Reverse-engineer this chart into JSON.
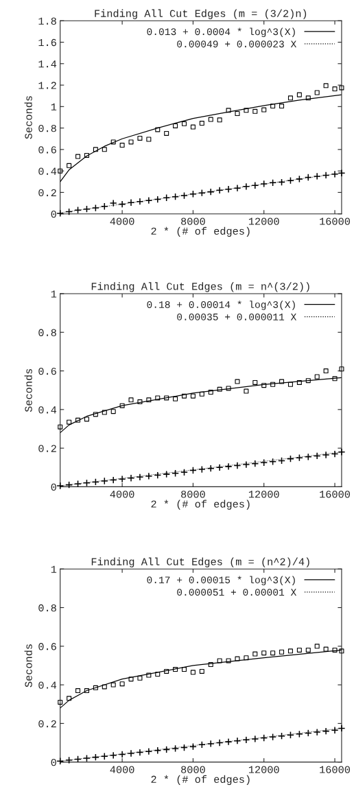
{
  "chart_data": [
    {
      "type": "scatter",
      "title": "Finding All Cut Edges (m = (3/2)n)",
      "xlabel": "2 * (# of edges)",
      "ylabel": "Seconds",
      "x": [
        500,
        1000,
        1500,
        2000,
        2500,
        3000,
        3500,
        4000,
        4500,
        5000,
        5500,
        6000,
        6500,
        7000,
        7500,
        8000,
        8500,
        9000,
        9500,
        10000,
        10500,
        11000,
        11500,
        12000,
        12500,
        13000,
        13500,
        14000,
        14500,
        15000,
        15500,
        16000,
        16384
      ],
      "xlim": [
        500,
        16384
      ],
      "xticks": [
        4000,
        8000,
        12000,
        16000
      ],
      "ylim": [
        0,
        1.8
      ],
      "yticks": [
        0,
        0.2,
        0.4,
        0.6,
        0.8,
        1,
        1.2,
        1.4,
        1.6,
        1.8
      ],
      "grid": false,
      "legend": "top right",
      "series": [
        {
          "marker": "square",
          "color": "#000000",
          "values": [
            0.4,
            0.45,
            0.535,
            0.545,
            0.6,
            0.6,
            0.67,
            0.64,
            0.67,
            0.705,
            0.695,
            0.785,
            0.75,
            0.82,
            0.84,
            0.81,
            0.845,
            0.88,
            0.875,
            0.965,
            0.935,
            0.965,
            0.955,
            0.97,
            1.005,
            1.005,
            1.08,
            1.11,
            1.08,
            1.13,
            1.195,
            1.165,
            1.175
          ]
        },
        {
          "type": "line",
          "name": "0.013 + 0.0004 * log^3(X)",
          "line_style": "solid",
          "color": "#000000",
          "x": [
            500,
            1000,
            2000,
            3000,
            4000,
            6000,
            8000,
            10000,
            12000,
            14000,
            16384
          ],
          "values": [
            0.3,
            0.41,
            0.54,
            0.63,
            0.7,
            0.8,
            0.89,
            0.95,
            1.01,
            1.06,
            1.11
          ]
        },
        {
          "marker": "cross",
          "color": "#000000",
          "values": [
            0.005,
            0.02,
            0.035,
            0.045,
            0.055,
            0.07,
            0.1,
            0.09,
            0.105,
            0.115,
            0.125,
            0.135,
            0.15,
            0.16,
            0.17,
            0.185,
            0.195,
            0.205,
            0.22,
            0.23,
            0.24,
            0.255,
            0.265,
            0.28,
            0.29,
            0.295,
            0.31,
            0.325,
            0.34,
            0.35,
            0.36,
            0.37,
            0.38
          ]
        },
        {
          "type": "line",
          "name": "0.00049 + 0.000023 X",
          "line_style": "dotted",
          "color": "#000000",
          "x": [
            500,
            16384
          ],
          "values": [
            0.01,
            0.38
          ]
        }
      ]
    },
    {
      "type": "scatter",
      "title": "Finding All Cut Edges (m = n^(3/2))",
      "xlabel": "2 * (# of edges)",
      "ylabel": "Seconds",
      "x": [
        500,
        1000,
        1500,
        2000,
        2500,
        3000,
        3500,
        4000,
        4500,
        5000,
        5500,
        6000,
        6500,
        7000,
        7500,
        8000,
        8500,
        9000,
        9500,
        10000,
        10500,
        11000,
        11500,
        12000,
        12500,
        13000,
        13500,
        14000,
        14500,
        15000,
        15500,
        16000,
        16384
      ],
      "xlim": [
        500,
        16384
      ],
      "xticks": [
        4000,
        8000,
        12000,
        16000
      ],
      "ylim": [
        0,
        1
      ],
      "yticks": [
        0,
        0.2,
        0.4,
        0.6,
        0.8,
        1
      ],
      "grid": false,
      "legend": "top right",
      "series": [
        {
          "marker": "square",
          "color": "#000000",
          "values": [
            0.31,
            0.335,
            0.345,
            0.35,
            0.375,
            0.385,
            0.39,
            0.42,
            0.45,
            0.44,
            0.45,
            0.46,
            0.46,
            0.455,
            0.47,
            0.47,
            0.48,
            0.49,
            0.505,
            0.51,
            0.545,
            0.495,
            0.54,
            0.525,
            0.53,
            0.545,
            0.53,
            0.54,
            0.55,
            0.57,
            0.6,
            0.56,
            0.61
          ]
        },
        {
          "type": "line",
          "name": "0.18 + 0.00014 * log^3(X)",
          "line_style": "solid",
          "color": "#000000",
          "x": [
            500,
            1000,
            2000,
            4000,
            8000,
            12000,
            16384
          ],
          "values": [
            0.28,
            0.32,
            0.365,
            0.42,
            0.485,
            0.53,
            0.565
          ]
        },
        {
          "marker": "cross",
          "color": "#000000",
          "values": [
            0.005,
            0.01,
            0.015,
            0.02,
            0.025,
            0.03,
            0.035,
            0.04,
            0.045,
            0.05,
            0.055,
            0.06,
            0.065,
            0.07,
            0.075,
            0.085,
            0.09,
            0.095,
            0.1,
            0.105,
            0.11,
            0.115,
            0.12,
            0.125,
            0.13,
            0.135,
            0.145,
            0.15,
            0.155,
            0.16,
            0.165,
            0.17,
            0.18
          ]
        },
        {
          "type": "line",
          "name": "0.00035 + 0.000011 X",
          "line_style": "dotted",
          "color": "#000000",
          "x": [
            500,
            16384
          ],
          "values": [
            0.005,
            0.18
          ]
        }
      ]
    },
    {
      "type": "scatter",
      "title": "Finding All Cut Edges (m = (n^2)/4)",
      "xlabel": "2 * (# of edges)",
      "ylabel": "Seconds",
      "x": [
        500,
        1000,
        1500,
        2000,
        2500,
        3000,
        3500,
        4000,
        4500,
        5000,
        5500,
        6000,
        6500,
        7000,
        7500,
        8000,
        8500,
        9000,
        9500,
        10000,
        10500,
        11000,
        11500,
        12000,
        12500,
        13000,
        13500,
        14000,
        14500,
        15000,
        15500,
        16000,
        16384
      ],
      "xlim": [
        500,
        16384
      ],
      "xticks": [
        4000,
        8000,
        12000,
        16000
      ],
      "ylim": [
        0,
        1
      ],
      "yticks": [
        0,
        0.2,
        0.4,
        0.6,
        0.8,
        1
      ],
      "grid": false,
      "legend": "top right",
      "series": [
        {
          "marker": "square",
          "color": "#000000",
          "values": [
            0.31,
            0.33,
            0.37,
            0.37,
            0.385,
            0.39,
            0.4,
            0.405,
            0.43,
            0.435,
            0.45,
            0.455,
            0.47,
            0.48,
            0.48,
            0.465,
            0.47,
            0.505,
            0.525,
            0.525,
            0.535,
            0.54,
            0.56,
            0.565,
            0.565,
            0.57,
            0.575,
            0.58,
            0.58,
            0.6,
            0.585,
            0.58,
            0.575
          ]
        },
        {
          "type": "line",
          "name": "0.17 + 0.00015 * log^3(X)",
          "line_style": "solid",
          "color": "#000000",
          "x": [
            500,
            1000,
            2000,
            4000,
            8000,
            12000,
            16384
          ],
          "values": [
            0.28,
            0.32,
            0.37,
            0.43,
            0.5,
            0.54,
            0.58
          ]
        },
        {
          "marker": "cross",
          "color": "#000000",
          "values": [
            0.005,
            0.01,
            0.015,
            0.02,
            0.025,
            0.03,
            0.035,
            0.04,
            0.045,
            0.05,
            0.055,
            0.06,
            0.065,
            0.07,
            0.075,
            0.08,
            0.09,
            0.095,
            0.1,
            0.105,
            0.11,
            0.115,
            0.12,
            0.125,
            0.13,
            0.135,
            0.14,
            0.145,
            0.15,
            0.155,
            0.16,
            0.165,
            0.175
          ]
        },
        {
          "type": "line",
          "name": "0.000051 + 0.00001 X",
          "line_style": "dotted",
          "color": "#000000",
          "x": [
            500,
            16384
          ],
          "values": [
            0.005,
            0.175
          ]
        }
      ]
    }
  ]
}
